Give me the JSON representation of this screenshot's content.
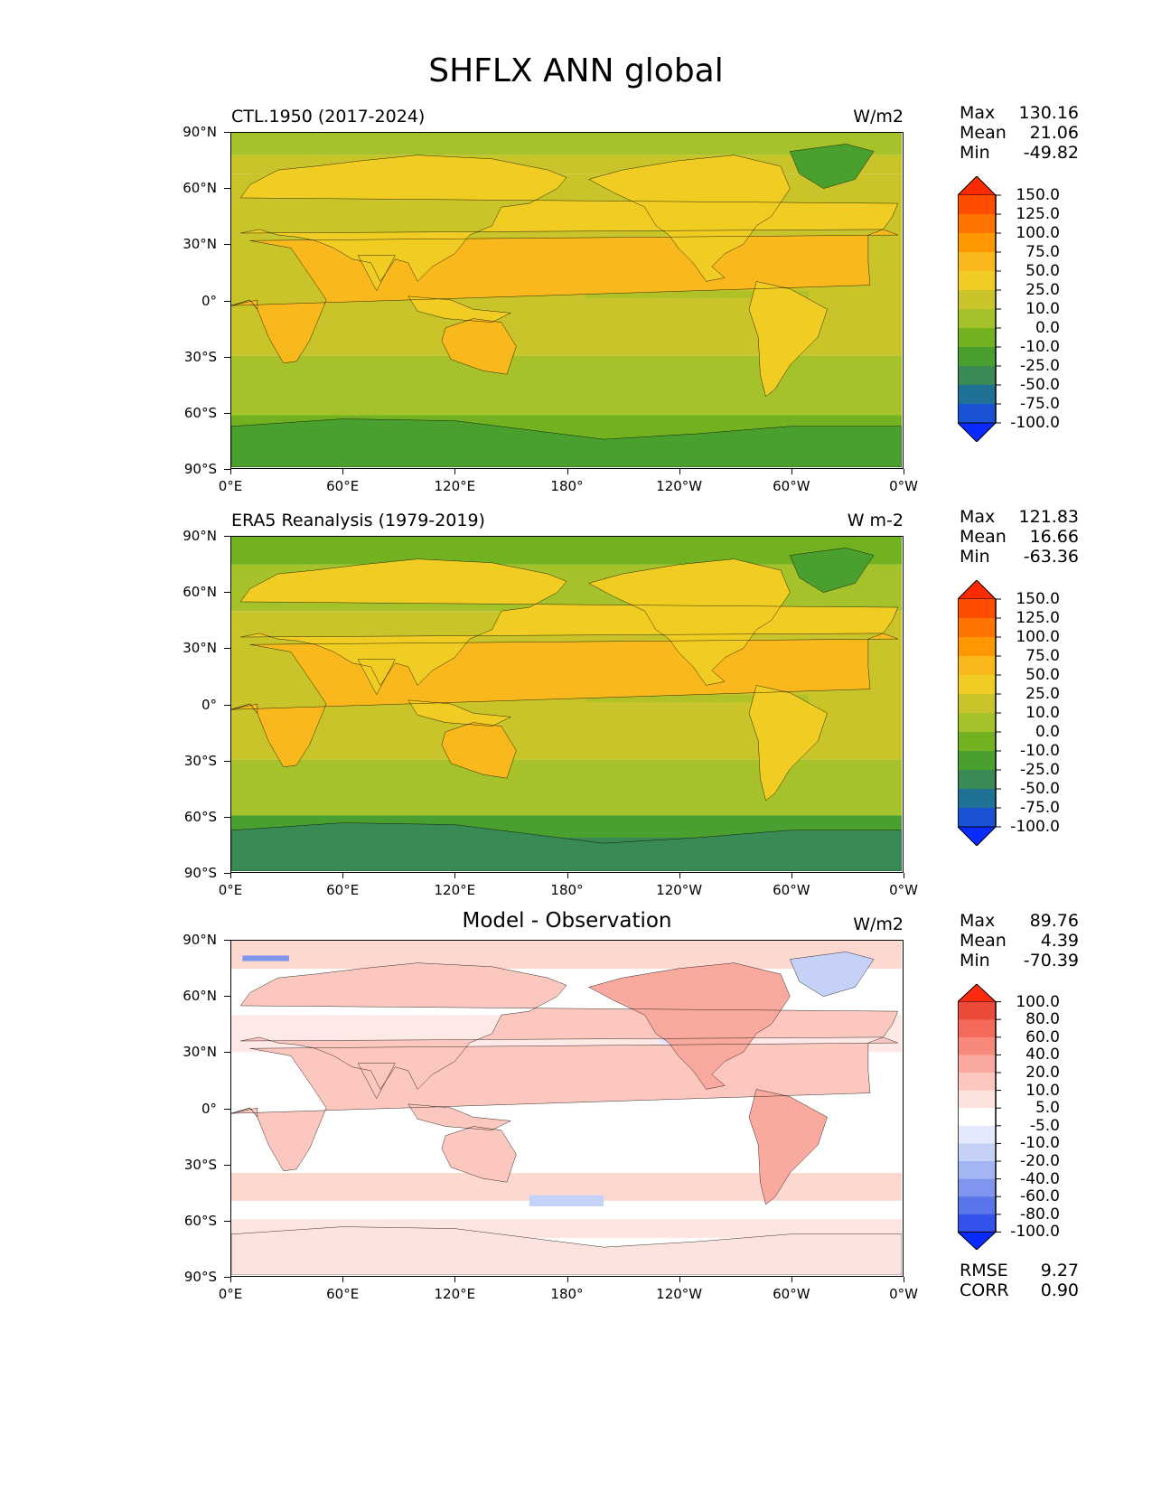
{
  "figure": {
    "title": "SHFLX ANN global"
  },
  "axes": {
    "y_ticks": [
      "90°N",
      "60°N",
      "30°N",
      "0°",
      "30°S",
      "60°S",
      "90°S"
    ],
    "x_ticks": [
      "0°E",
      "60°E",
      "120°E",
      "180°",
      "120°W",
      "60°W",
      "0°W"
    ]
  },
  "panels": [
    {
      "left_label": "CTL.1950 (2017-2024)",
      "center_label": "",
      "units": "W/m2",
      "stats": [
        {
          "label": "Max",
          "value": "130.16"
        },
        {
          "label": "Mean",
          "value": "21.06"
        },
        {
          "label": "Min",
          "value": "-49.82"
        }
      ],
      "colorbar": {
        "levels": [
          "150.0",
          "125.0",
          "100.0",
          "75.0",
          "50.0",
          "25.0",
          "10.0",
          "0.0",
          "-10.0",
          "-25.0",
          "-50.0",
          "-75.0",
          "-100.0"
        ],
        "colors": [
          "#ff2b00",
          "#ff4d00",
          "#ff7400",
          "#ff9700",
          "#f9b91c",
          "#f1cd24",
          "#c8c42a",
          "#a6c22a",
          "#72b221",
          "#4aa02f",
          "#3a8a56",
          "#1f7296",
          "#1a53d6",
          "#0a2bff"
        ]
      },
      "style": "absolute"
    },
    {
      "left_label": "ERA5 Reanalysis (1979-2019)",
      "center_label": "",
      "units": "W m-2",
      "stats": [
        {
          "label": "Max",
          "value": "121.83"
        },
        {
          "label": "Mean",
          "value": "16.66"
        },
        {
          "label": "Min",
          "value": "-63.36"
        }
      ],
      "colorbar": {
        "levels": [
          "150.0",
          "125.0",
          "100.0",
          "75.0",
          "50.0",
          "25.0",
          "10.0",
          "0.0",
          "-10.0",
          "-25.0",
          "-50.0",
          "-75.0",
          "-100.0"
        ],
        "colors": [
          "#ff2b00",
          "#ff4d00",
          "#ff7400",
          "#ff9700",
          "#f9b91c",
          "#f1cd24",
          "#c8c42a",
          "#a6c22a",
          "#72b221",
          "#4aa02f",
          "#3a8a56",
          "#1f7296",
          "#1a53d6",
          "#0a2bff"
        ]
      },
      "style": "absolute"
    },
    {
      "left_label": "",
      "center_label": "Model - Observation",
      "units": "W/m2",
      "stats": [
        {
          "label": "Max",
          "value": "89.76"
        },
        {
          "label": "Mean",
          "value": "4.39"
        },
        {
          "label": "Min",
          "value": "-70.39"
        }
      ],
      "colorbar": {
        "levels": [
          "100.0",
          "80.0",
          "60.0",
          "40.0",
          "20.0",
          "10.0",
          "5.0",
          "-5.0",
          "-10.0",
          "-20.0",
          "-40.0",
          "-60.0",
          "-80.0",
          "-100.0"
        ],
        "colors": [
          "#ff2b10",
          "#ee4a3a",
          "#f4695a",
          "#f7897c",
          "#f9a99d",
          "#fbc7be",
          "#fde3de",
          "#ffffff",
          "#e4e9fb",
          "#c6d1f8",
          "#a4b5f4",
          "#7f95ee",
          "#5a75ea",
          "#3452ee",
          "#0a2bff"
        ]
      },
      "extra_stats": [
        {
          "label": "RMSE",
          "value": "9.27"
        },
        {
          "label": "CORR",
          "value": "0.90"
        }
      ],
      "style": "diff"
    }
  ]
}
